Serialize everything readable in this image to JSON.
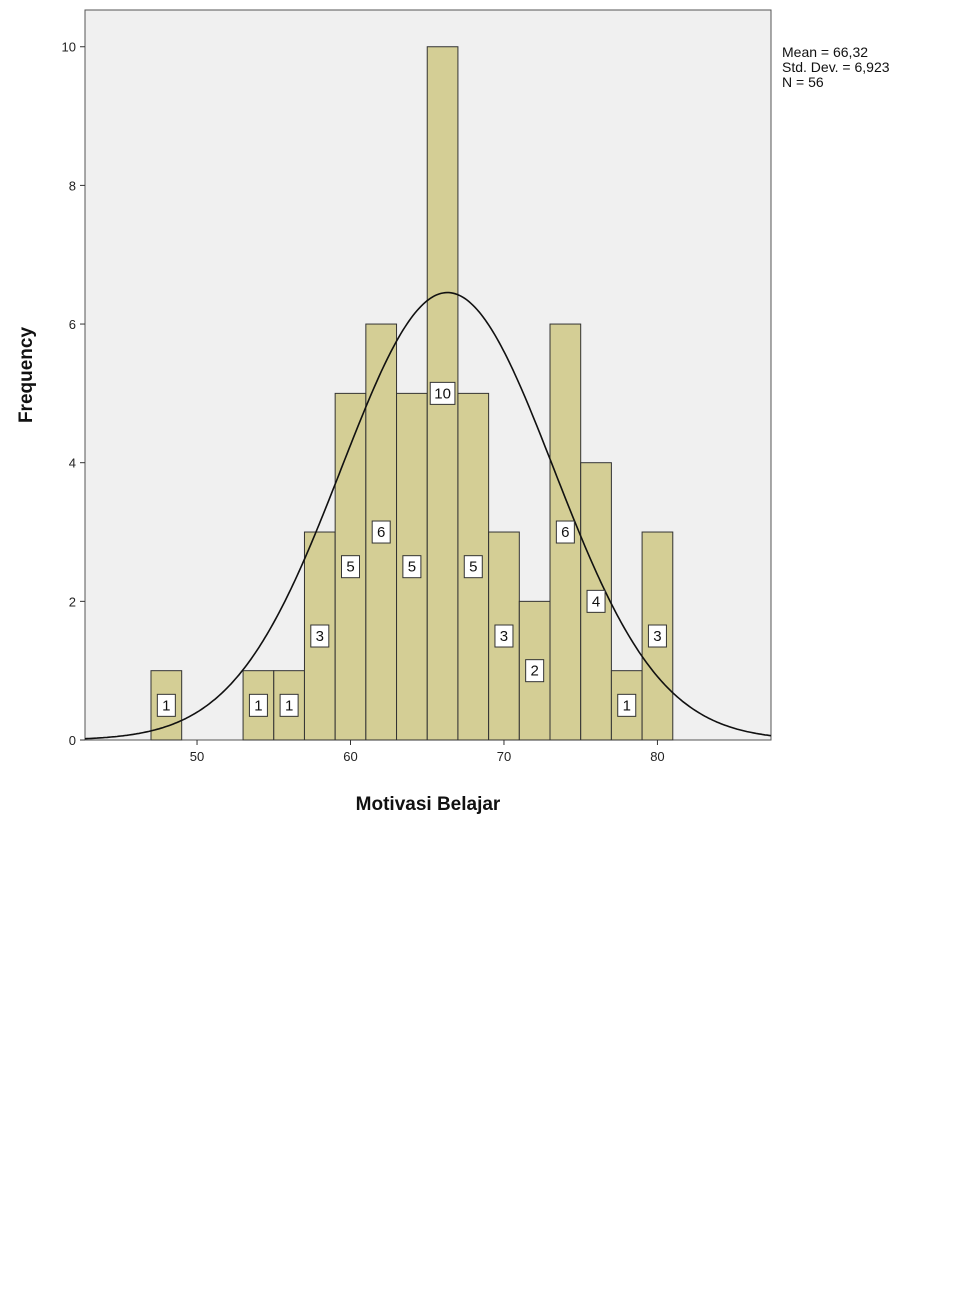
{
  "chart_data": {
    "type": "histogram",
    "xlabel": "Motivasi Belajar",
    "ylabel": "Frequency",
    "bins": [
      47,
      49,
      51,
      53,
      55,
      57,
      59,
      61,
      63,
      65,
      67,
      69,
      71,
      73,
      75,
      77,
      79,
      81
    ],
    "values": [
      1,
      0,
      0,
      1,
      1,
      3,
      5,
      6,
      5,
      10,
      5,
      3,
      2,
      6,
      4,
      1,
      3
    ],
    "color": "#d0ca8b",
    "xlim": [
      42.7,
      87.4
    ],
    "xticks": [
      50,
      60,
      70,
      80
    ],
    "ylim": [
      0,
      10.53
    ],
    "yticks": [
      0,
      2,
      4,
      6,
      8,
      10
    ],
    "normal_curve": true,
    "stats": [
      {
        "value": 66.32,
        "label": "Mean = 66,32"
      },
      {
        "value": 6.923,
        "label": "Std. Dev. = 6,923"
      },
      {
        "value": 56,
        "label": "N = 56"
      }
    ]
  }
}
